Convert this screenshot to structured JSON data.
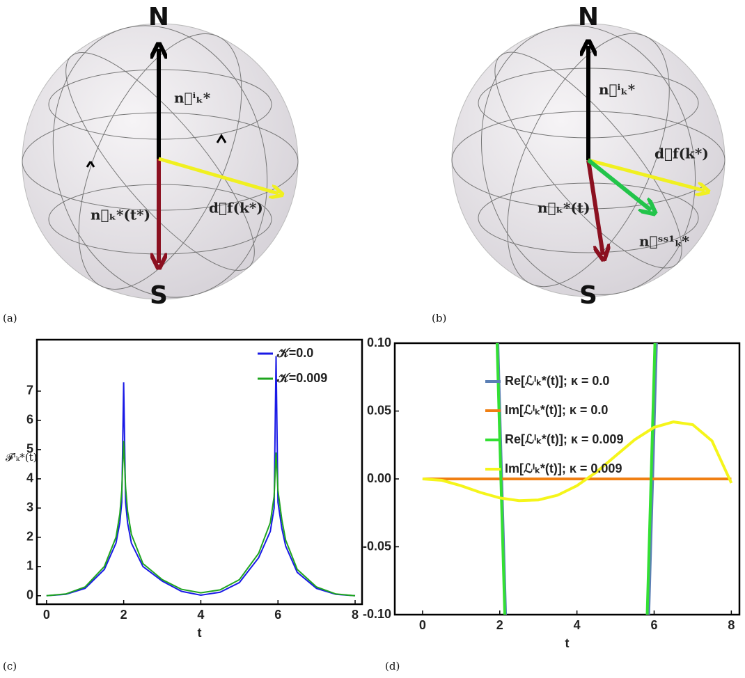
{
  "diagram_a": {
    "label": "(a)",
    "north": "N",
    "south": "S",
    "vectors": [
      "n⃗ⁱₖ*",
      "n⃗ₖ*(t*)",
      "d⃗f(k*)"
    ]
  },
  "diagram_b": {
    "label": "(b)",
    "north": "N",
    "south": "S",
    "vectors": [
      "n⃗ⁱₖ*",
      "d⃗f(k*)",
      "n⃗ₖ*(t)",
      "n⃗ˢˢ¹ₖ*"
    ]
  },
  "chart_data": [
    {
      "type": "line",
      "label": "(c)",
      "x_label": "t",
      "y_label": "𝓕ᴵₖ*(t)",
      "legend": "upper right",
      "xlim": [
        -0.25,
        8.18
      ],
      "ylim": [
        -0.29,
        8.76
      ],
      "xticks": [
        0,
        2,
        4,
        6,
        8
      ],
      "yticks": [
        0,
        1,
        2,
        3,
        4,
        5,
        6,
        7
      ],
      "x": [
        0,
        0.5,
        1,
        1.5,
        1.8,
        1.9,
        1.95,
        2.0,
        2.05,
        2.1,
        2.2,
        2.5,
        3,
        3.5,
        4,
        4.5,
        5,
        5.5,
        5.8,
        5.9,
        5.95,
        6.0,
        6.1,
        6.2,
        6.5,
        7,
        7.5,
        8
      ],
      "series": [
        {
          "name": "𝒦=0.0",
          "color": "#1a1ae6",
          "values": [
            0,
            0.05,
            0.25,
            0.9,
            1.8,
            2.5,
            3.2,
            7.3,
            3.2,
            2.5,
            1.8,
            1.0,
            0.5,
            0.15,
            0.02,
            0.12,
            0.45,
            1.3,
            2.2,
            3.0,
            8.2,
            3.2,
            2.3,
            1.7,
            0.8,
            0.25,
            0.05,
            0
          ]
        },
        {
          "name": "𝒦=0.009",
          "color": "#1fa51f",
          "values": [
            0,
            0.06,
            0.3,
            1.0,
            2.0,
            2.8,
            3.6,
            5.3,
            3.7,
            2.9,
            2.1,
            1.1,
            0.55,
            0.22,
            0.1,
            0.2,
            0.55,
            1.45,
            2.5,
            3.4,
            4.9,
            3.6,
            2.6,
            1.9,
            0.9,
            0.3,
            0.06,
            0
          ]
        }
      ]
    },
    {
      "type": "line",
      "label": "(d)",
      "x_label": "t",
      "legend": "upper left",
      "xlim": [
        -0.72,
        8.21
      ],
      "ylim": [
        -0.1,
        0.1
      ],
      "xticks": [
        0,
        2,
        4,
        6,
        8
      ],
      "yticks": [
        {
          "value": 0.1,
          "label": "0.10"
        },
        {
          "value": 0.05,
          "label": "0.05"
        },
        {
          "value": 0,
          "label": "0.00"
        },
        {
          "value": -0.05,
          "label": "-0.05"
        },
        {
          "value": -0.1,
          "label": "-0.10"
        }
      ],
      "series": [
        {
          "name": "Re[ℒᴵₖ*(t)]; κ = 0.0",
          "color": "#5b7fb5",
          "x": [
            1.95,
            2.05,
            2.15,
            4,
            5.86,
            5.96,
            6.06
          ],
          "values": [
            0.1,
            0,
            -0.1,
            null,
            -0.1,
            0,
            0.1
          ]
        },
        {
          "name": "Im[ℒᴵₖ*(t)]; κ = 0.0",
          "color": "#f07f12",
          "x": [
            0,
            8
          ],
          "values": [
            0,
            0
          ]
        },
        {
          "name": "Re[ℒᴵₖ*(t)]; κ = 0.009",
          "color": "#33e033",
          "x": [
            1.93,
            2.03,
            2.13,
            4,
            5.82,
            5.92,
            6.02
          ],
          "values": [
            0.1,
            0,
            -0.1,
            null,
            -0.1,
            0,
            0.1
          ]
        },
        {
          "name": "Im[ℒᴵₖ*(t)]; κ = 0.009",
          "color": "#f5f51a",
          "x": [
            0,
            0.5,
            1,
            1.5,
            2,
            2.5,
            3,
            3.5,
            4,
            4.5,
            5,
            5.5,
            6,
            6.5,
            7,
            7.5,
            8
          ],
          "values": [
            0,
            -0.001,
            -0.005,
            -0.01,
            -0.014,
            -0.016,
            -0.0155,
            -0.012,
            -0.005,
            0.005,
            0.017,
            0.029,
            0.038,
            0.042,
            0.04,
            0.028,
            -0.003
          ]
        }
      ]
    }
  ]
}
